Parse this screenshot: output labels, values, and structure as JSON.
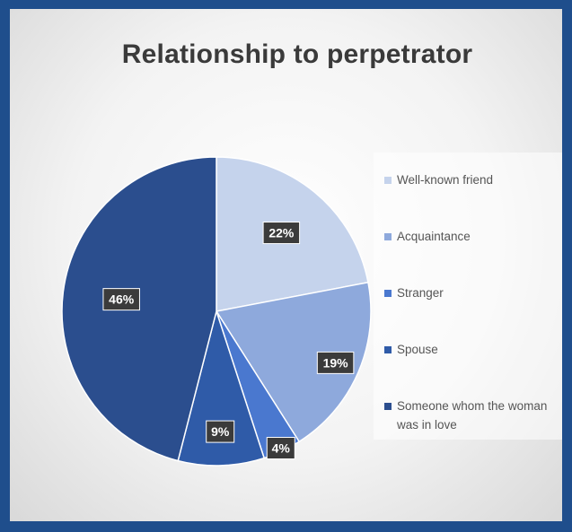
{
  "chart_data": {
    "type": "pie",
    "title": "Relationship to perpetrator",
    "categories": [
      "Well-known friend",
      "Acquaintance",
      "Stranger",
      "Spouse",
      "Someone whom the woman was in love"
    ],
    "values": [
      22,
      19,
      4,
      9,
      46
    ],
    "data_labels": [
      "22%",
      "19%",
      "4%",
      "9%",
      "46%"
    ],
    "colors": [
      "#c5d3ec",
      "#8ea9dc",
      "#4a78cf",
      "#2f5ba8",
      "#2b4e8e"
    ],
    "legend": "right"
  }
}
